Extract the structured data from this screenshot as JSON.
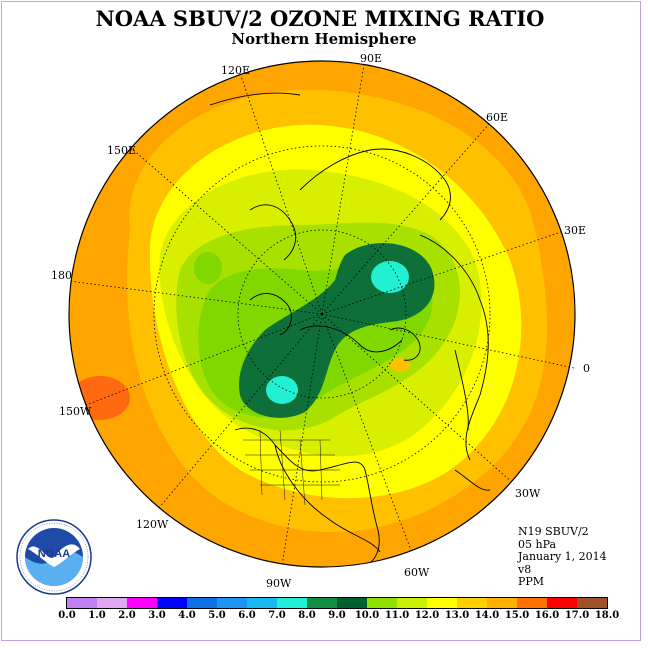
{
  "title": "NOAA SBUV/2 OZONE MIXING RATIO",
  "subtitle": "Northern Hemisphere",
  "longitude_labels": {
    "e90": "90E",
    "e120": "120E",
    "e60": "60E",
    "e150": "150E",
    "e30": "30E",
    "lon180": "180",
    "lon0": "0",
    "w150": "150W",
    "w30": "30W",
    "w120": "120W",
    "w60": "60W",
    "w90": "90W"
  },
  "info": {
    "satellite": "N19 SBUV/2",
    "level": "05 hPa",
    "date": "January 1, 2014",
    "version": "v8",
    "units": "PPM"
  },
  "logo": {
    "text": "NOAA",
    "ring_text": "NATIONAL OCEANIC AND ATMOSPHERIC ADMINISTRATION · U.S. DEPARTMENT OF COMMERCE"
  },
  "colorbar": {
    "colors": [
      "#c080f0",
      "#e0a8f0",
      "#ff00ff",
      "#0000ff",
      "#1070e8",
      "#1c94f0",
      "#18b8f0",
      "#20f0d8",
      "#109040",
      "#006030",
      "#90e000",
      "#c8f000",
      "#ffff00",
      "#ffd000",
      "#ffb000",
      "#ff7000",
      "#ff0000",
      "#a05028"
    ],
    "labels": [
      "0.0",
      "1.0",
      "2.0",
      "3.0",
      "4.0",
      "5.0",
      "6.0",
      "7.0",
      "8.0",
      "9.0",
      "10.0",
      "11.0",
      "12.0",
      "13.0",
      "14.0",
      "15.0",
      "16.0",
      "17.0",
      "18.0"
    ]
  },
  "field_colors": {
    "outer": "#ffa500",
    "orange_light": "#ffc000",
    "yellow": "#ffff00",
    "yellow_green": "#d8f000",
    "light_green": "#a8e000",
    "green": "#80d800",
    "dark_green": "#0e7038",
    "cyan": "#22f0d0",
    "red_orange": "#ff6a10"
  }
}
